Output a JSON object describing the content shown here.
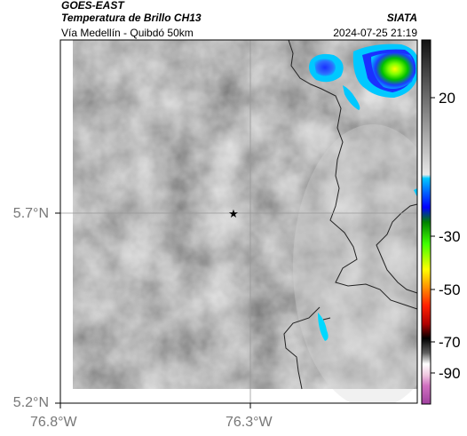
{
  "header": {
    "source": "GOES-EAST",
    "product": "Temperatura de Brillo CH13",
    "area": "Vía Medellín - Quibdó 50km",
    "org": "SIATA",
    "datetime": "2024-07-25 21:19"
  },
  "map": {
    "lat_ticks": [
      "5.7°N",
      "5.2°N"
    ],
    "lon_ticks": [
      "76.8°W",
      "76.3°W"
    ],
    "marker": "star-icon",
    "grid": true
  },
  "colorbar": {
    "labels": [
      "20",
      "-30",
      "-50",
      "-70",
      "-90"
    ],
    "colors": {
      "gray_top": "#111111",
      "gray_bottom": "#e8e8e8",
      "cyan": "#00c8ff",
      "blue": "#0020ff",
      "green": "#00ff00",
      "yellow": "#ffff00",
      "red": "#ff0000",
      "black": "#000000",
      "magenta": "#a0409f"
    }
  }
}
